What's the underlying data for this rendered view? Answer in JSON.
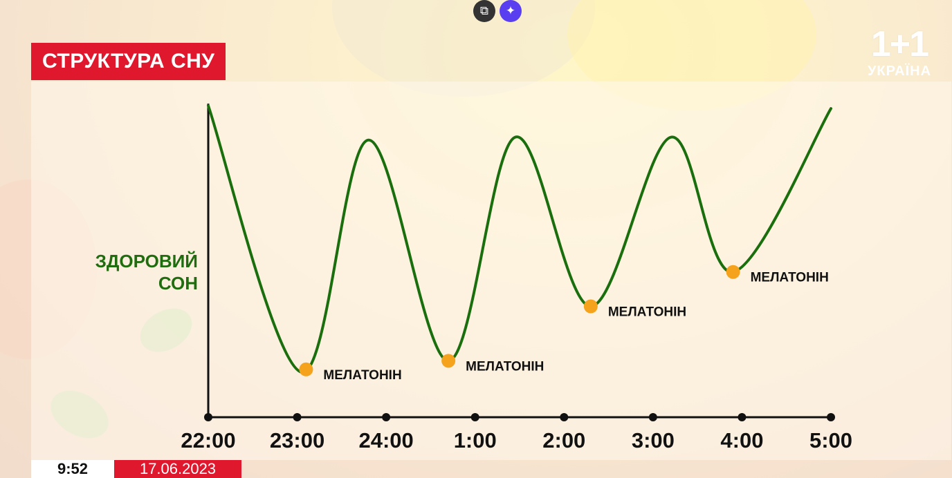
{
  "header": {
    "title": "СТРУКТУРА СНУ"
  },
  "logo": {
    "main": "1+1",
    "sub": "УКРАЇНА"
  },
  "toolbar": {
    "copy_icon": "copy-icon",
    "ai_icon": "sparkle-icon",
    "ai_color": "#5a3ff0"
  },
  "footer": {
    "time": "9:52",
    "date": "17.06.2023"
  },
  "colors": {
    "line": "#1a6e0e",
    "marker": "#f5a21c",
    "banner": "#e0182d",
    "axis": "#111111"
  },
  "chart_data": {
    "type": "line",
    "title": "",
    "ylabel": "ЗДОРОВИЙ СОН",
    "categories": [
      "22:00",
      "23:00",
      "24:00",
      "1:00",
      "2:00",
      "3:00",
      "4:00",
      "5:00"
    ],
    "curve": [
      {
        "x": 0.0,
        "y": 1.0
      },
      {
        "x": 1.05,
        "y": 0.07
      },
      {
        "x": 1.8,
        "y": 0.88
      },
      {
        "x": 2.7,
        "y": 0.11
      },
      {
        "x": 3.45,
        "y": 0.89
      },
      {
        "x": 4.3,
        "y": 0.3
      },
      {
        "x": 5.2,
        "y": 0.89
      },
      {
        "x": 5.9,
        "y": 0.42
      },
      {
        "x": 7.0,
        "y": 0.99
      }
    ],
    "markers": [
      {
        "x": 1.1,
        "y": 0.08,
        "label": "МЕЛАТОНІН"
      },
      {
        "x": 2.7,
        "y": 0.11,
        "label": "МЕЛАТОНІН"
      },
      {
        "x": 4.3,
        "y": 0.3,
        "label": "МЕЛАТОНІН"
      },
      {
        "x": 5.9,
        "y": 0.42,
        "label": "МЕЛАТОНІН"
      }
    ],
    "xlim": [
      0,
      7
    ],
    "ylim": [
      0,
      1
    ]
  }
}
